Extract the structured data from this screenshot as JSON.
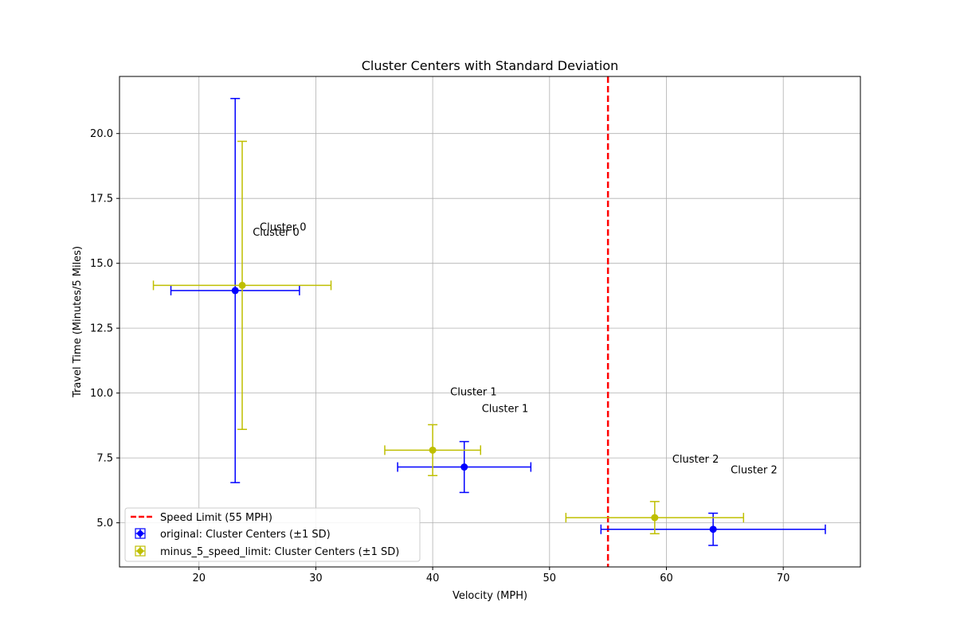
{
  "chart_data": {
    "type": "scatter",
    "title": "Cluster Centers with Standard Deviation",
    "xlabel": "Velocity (MPH)",
    "ylabel": "Travel Time (Minutes/5 Miles)",
    "xlim": [
      13.2,
      76.6
    ],
    "ylim": [
      3.3,
      22.2
    ],
    "xticks": [
      20,
      30,
      40,
      50,
      60,
      70
    ],
    "yticks": [
      5.0,
      7.5,
      10.0,
      12.5,
      15.0,
      17.5,
      20.0
    ],
    "xtick_labels": [
      "20",
      "30",
      "40",
      "50",
      "60",
      "70"
    ],
    "ytick_labels": [
      "5.0",
      "7.5",
      "10.0",
      "12.5",
      "15.0",
      "17.5",
      "20.0"
    ],
    "grid": true,
    "legend_position": "lower-left",
    "speed_limit": {
      "x": 55,
      "label": "Speed Limit (55 MPH)",
      "color": "#ff0000",
      "style": "dashed"
    },
    "series": [
      {
        "name": "original: Cluster Centers (±1 SD)",
        "color": "#0000ff",
        "marker": "circle",
        "points": [
          {
            "label": "Cluster 0",
            "x": 23.1,
            "y": 13.95,
            "xerr": 5.5,
            "yerr": 7.4,
            "label_x": 24.6,
            "label_y": 16.2
          },
          {
            "label": "Cluster 1",
            "x": 42.7,
            "y": 7.15,
            "xerr": 5.7,
            "yerr": 0.98,
            "label_x": 44.2,
            "label_y": 9.4
          },
          {
            "label": "Cluster 2",
            "x": 64.0,
            "y": 4.75,
            "xerr": 9.6,
            "yerr": 0.62,
            "label_x": 65.5,
            "label_y": 7.05
          }
        ]
      },
      {
        "name": "minus_5_speed_limit: Cluster Centers (±1 SD)",
        "color": "#bfbf00",
        "marker": "circle",
        "points": [
          {
            "label": "Cluster 0",
            "x": 23.7,
            "y": 14.15,
            "xerr": 7.6,
            "yerr": 5.55,
            "label_x": 25.2,
            "label_y": 16.4
          },
          {
            "label": "Cluster 1",
            "x": 40.0,
            "y": 7.8,
            "xerr": 4.1,
            "yerr": 0.98,
            "label_x": 41.5,
            "label_y": 10.05
          },
          {
            "label": "Cluster 2",
            "x": 59.0,
            "y": 5.2,
            "xerr": 7.6,
            "yerr": 0.62,
            "label_x": 60.5,
            "label_y": 7.45
          }
        ]
      }
    ]
  }
}
